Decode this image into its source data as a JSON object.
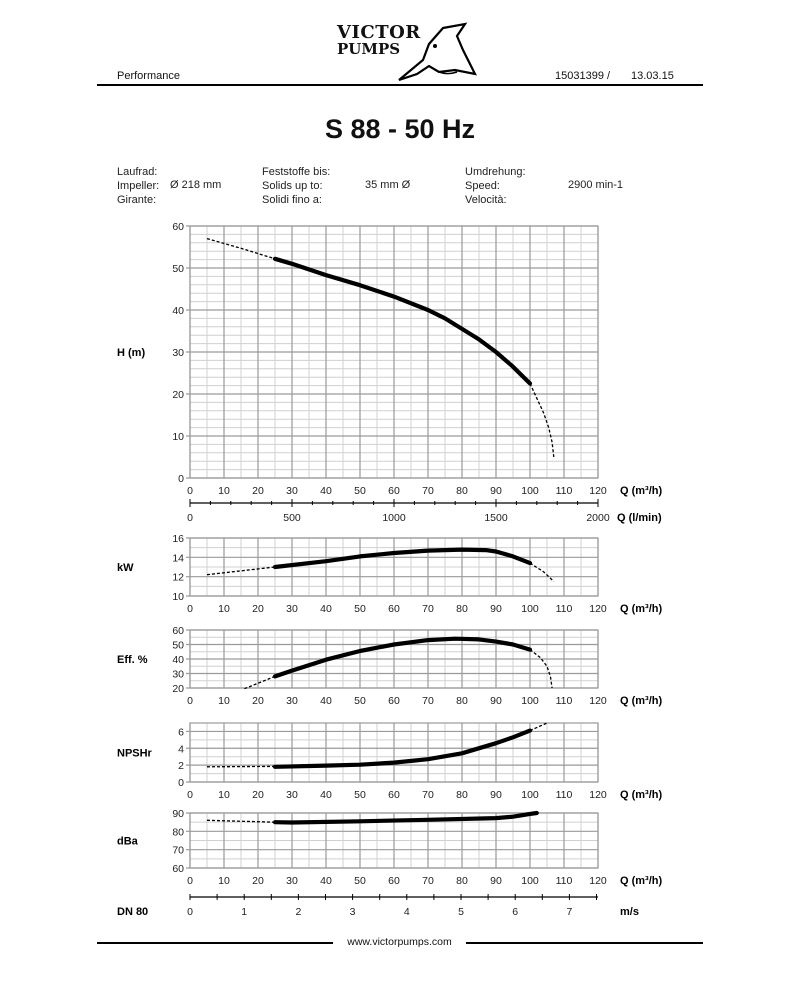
{
  "header": {
    "section": "Performance",
    "logo_text_line1": "VICTOR",
    "logo_text_line2": "PUMPS",
    "doc_number": "15031399 /",
    "date": "13.03.15"
  },
  "title": "S 88 - 50 Hz",
  "specs": {
    "impeller_labels": [
      "Laufrad:",
      "Impeller:",
      "Girante:"
    ],
    "impeller_value": "Ø 218 mm",
    "solids_labels": [
      "Feststoffe bis:",
      "Solids up to:",
      "Solidi fino a:"
    ],
    "solids_value": "35 mm Ø",
    "speed_labels": [
      "Umdrehung:",
      "Speed:",
      "Velocità:"
    ],
    "speed_value": "2900 min-1"
  },
  "footer": {
    "website": "www.victorpumps.com"
  },
  "colors": {
    "curve": "#000000",
    "grid_major": "#9a9a9a",
    "grid_minor": "#d0d0d0"
  },
  "chart_data": [
    {
      "type": "line",
      "ylabel": "H (m)",
      "xlabel": "Q (m³/h)",
      "xlim": [
        0,
        120
      ],
      "xticks": [
        0,
        10,
        20,
        30,
        40,
        50,
        60,
        70,
        80,
        90,
        100,
        110,
        120
      ],
      "ylim": [
        0,
        60
      ],
      "yticks": [
        0,
        10,
        20,
        30,
        40,
        50,
        60
      ],
      "grid": true,
      "secondary_x_axis": {
        "label": "Q (l/min)",
        "lim": [
          0,
          2000
        ],
        "ticks": [
          0,
          500,
          1000,
          1500,
          2000
        ]
      },
      "series": [
        {
          "style": "dashed",
          "x": [
            5,
            15,
            25
          ],
          "y": [
            57,
            54.7,
            52.2
          ]
        },
        {
          "style": "solid",
          "x": [
            25,
            30,
            40,
            50,
            60,
            70,
            75,
            80,
            85,
            90,
            95,
            100
          ],
          "y": [
            52.2,
            51,
            48.3,
            45.9,
            43.2,
            40,
            38,
            35.5,
            33,
            30,
            26.5,
            22.5
          ]
        },
        {
          "style": "dashed",
          "x": [
            100,
            102,
            104,
            105.5,
            106.5,
            107
          ],
          "y": [
            22.5,
            19,
            15.5,
            12,
            8.5,
            5
          ]
        }
      ]
    },
    {
      "type": "line",
      "ylabel": "kW",
      "xlabel": "Q (m³/h)",
      "xlim": [
        0,
        120
      ],
      "xticks": [
        0,
        10,
        20,
        30,
        40,
        50,
        60,
        70,
        80,
        90,
        100,
        110,
        120
      ],
      "ylim": [
        10,
        16
      ],
      "yticks": [
        10,
        12,
        14,
        16
      ],
      "grid": true,
      "series": [
        {
          "style": "dashed",
          "x": [
            5,
            25
          ],
          "y": [
            12.2,
            13
          ]
        },
        {
          "style": "solid",
          "x": [
            25,
            40,
            50,
            60,
            70,
            80,
            87,
            90,
            95,
            100
          ],
          "y": [
            13,
            13.6,
            14.1,
            14.45,
            14.7,
            14.8,
            14.75,
            14.6,
            14.1,
            13.4
          ]
        },
        {
          "style": "dashed",
          "x": [
            100,
            104,
            107
          ],
          "y": [
            13.4,
            12.5,
            11.5
          ]
        }
      ]
    },
    {
      "type": "line",
      "ylabel": "Eff. %",
      "xlabel": "Q (m³/h)",
      "xlim": [
        0,
        120
      ],
      "xticks": [
        0,
        10,
        20,
        30,
        40,
        50,
        60,
        70,
        80,
        90,
        100,
        110,
        120
      ],
      "ylim": [
        20,
        60
      ],
      "yticks": [
        20,
        30,
        40,
        50,
        60
      ],
      "grid": true,
      "series": [
        {
          "style": "dashed",
          "x": [
            16,
            25
          ],
          "y": [
            19.5,
            28
          ]
        },
        {
          "style": "solid",
          "x": [
            25,
            30,
            40,
            50,
            60,
            70,
            78,
            85,
            90,
            95,
            100
          ],
          "y": [
            28,
            32,
            39.5,
            45.5,
            50,
            53,
            54,
            53.5,
            52,
            50,
            46.5
          ]
        },
        {
          "style": "dashed",
          "x": [
            100,
            103,
            105,
            106,
            106.5
          ],
          "y": [
            46.5,
            41,
            35,
            28,
            20
          ]
        }
      ]
    },
    {
      "type": "line",
      "ylabel": "NPSHr",
      "xlabel": "Q (m³/h)",
      "xlim": [
        0,
        120
      ],
      "xticks": [
        0,
        10,
        20,
        30,
        40,
        50,
        60,
        70,
        80,
        90,
        100,
        110,
        120
      ],
      "ylim": [
        0,
        7
      ],
      "yticks": [
        0,
        2,
        4,
        6
      ],
      "grid": true,
      "series": [
        {
          "style": "dashed",
          "x": [
            5,
            25
          ],
          "y": [
            1.8,
            1.85
          ]
        },
        {
          "style": "solid",
          "x": [
            25,
            40,
            50,
            60,
            70,
            80,
            90,
            95,
            100
          ],
          "y": [
            1.8,
            1.95,
            2.05,
            2.3,
            2.7,
            3.4,
            4.6,
            5.3,
            6.1
          ]
        },
        {
          "style": "dashed",
          "x": [
            100,
            105
          ],
          "y": [
            6.1,
            7
          ]
        }
      ]
    },
    {
      "type": "line",
      "ylabel": "dBa",
      "xlabel": "Q (m³/h)",
      "xlim": [
        0,
        120
      ],
      "xticks": [
        0,
        10,
        20,
        30,
        40,
        50,
        60,
        70,
        80,
        90,
        100,
        110,
        120
      ],
      "ylim": [
        60,
        90
      ],
      "yticks": [
        60,
        70,
        80,
        90
      ],
      "grid": true,
      "series": [
        {
          "style": "dashed",
          "x": [
            5,
            25
          ],
          "y": [
            86,
            85
          ]
        },
        {
          "style": "solid",
          "x": [
            25,
            30,
            50,
            70,
            90,
            95,
            100,
            102
          ],
          "y": [
            85,
            84.8,
            85.5,
            86.3,
            87.2,
            88,
            89.5,
            90
          ]
        }
      ]
    }
  ],
  "velocity_axis": {
    "label": "DN 80",
    "unit": "m/s",
    "lim": [
      0,
      7.5
    ],
    "ticks": [
      0,
      1,
      2,
      3,
      4,
      5,
      6,
      7
    ]
  }
}
